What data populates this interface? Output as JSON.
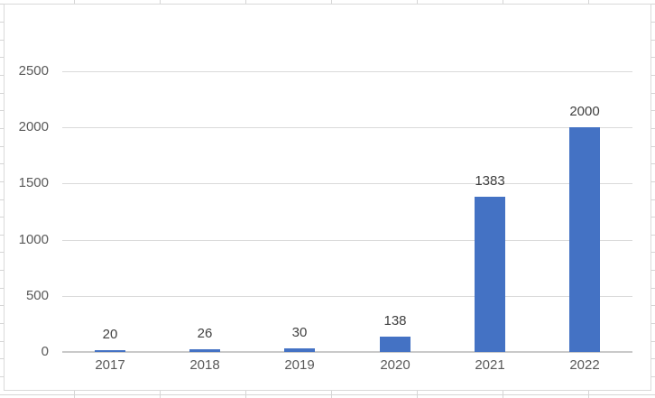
{
  "chart_data": {
    "type": "bar",
    "title": "",
    "xlabel": "",
    "ylabel": "",
    "categories": [
      "2017",
      "2018",
      "2019",
      "2020",
      "2021",
      "2022"
    ],
    "values": [
      20,
      26,
      30,
      138,
      1383,
      2000
    ],
    "data_labels": [
      "20",
      "26",
      "30",
      "138",
      "1383",
      "2000"
    ],
    "yticks": [
      0,
      500,
      1000,
      1500,
      2000,
      2500
    ],
    "ylim": [
      0,
      2500
    ],
    "grid": true,
    "legend": "none"
  },
  "colors": {
    "bar": "#4472C4",
    "gridline": "#DADADA",
    "axis_line": "#C9C9C9",
    "chart_border": "#D9D9D9",
    "sheet_gridline": "#D5D5D5",
    "axis_text": "#595959",
    "data_label_text": "#404040",
    "background": "#FFFFFF"
  }
}
